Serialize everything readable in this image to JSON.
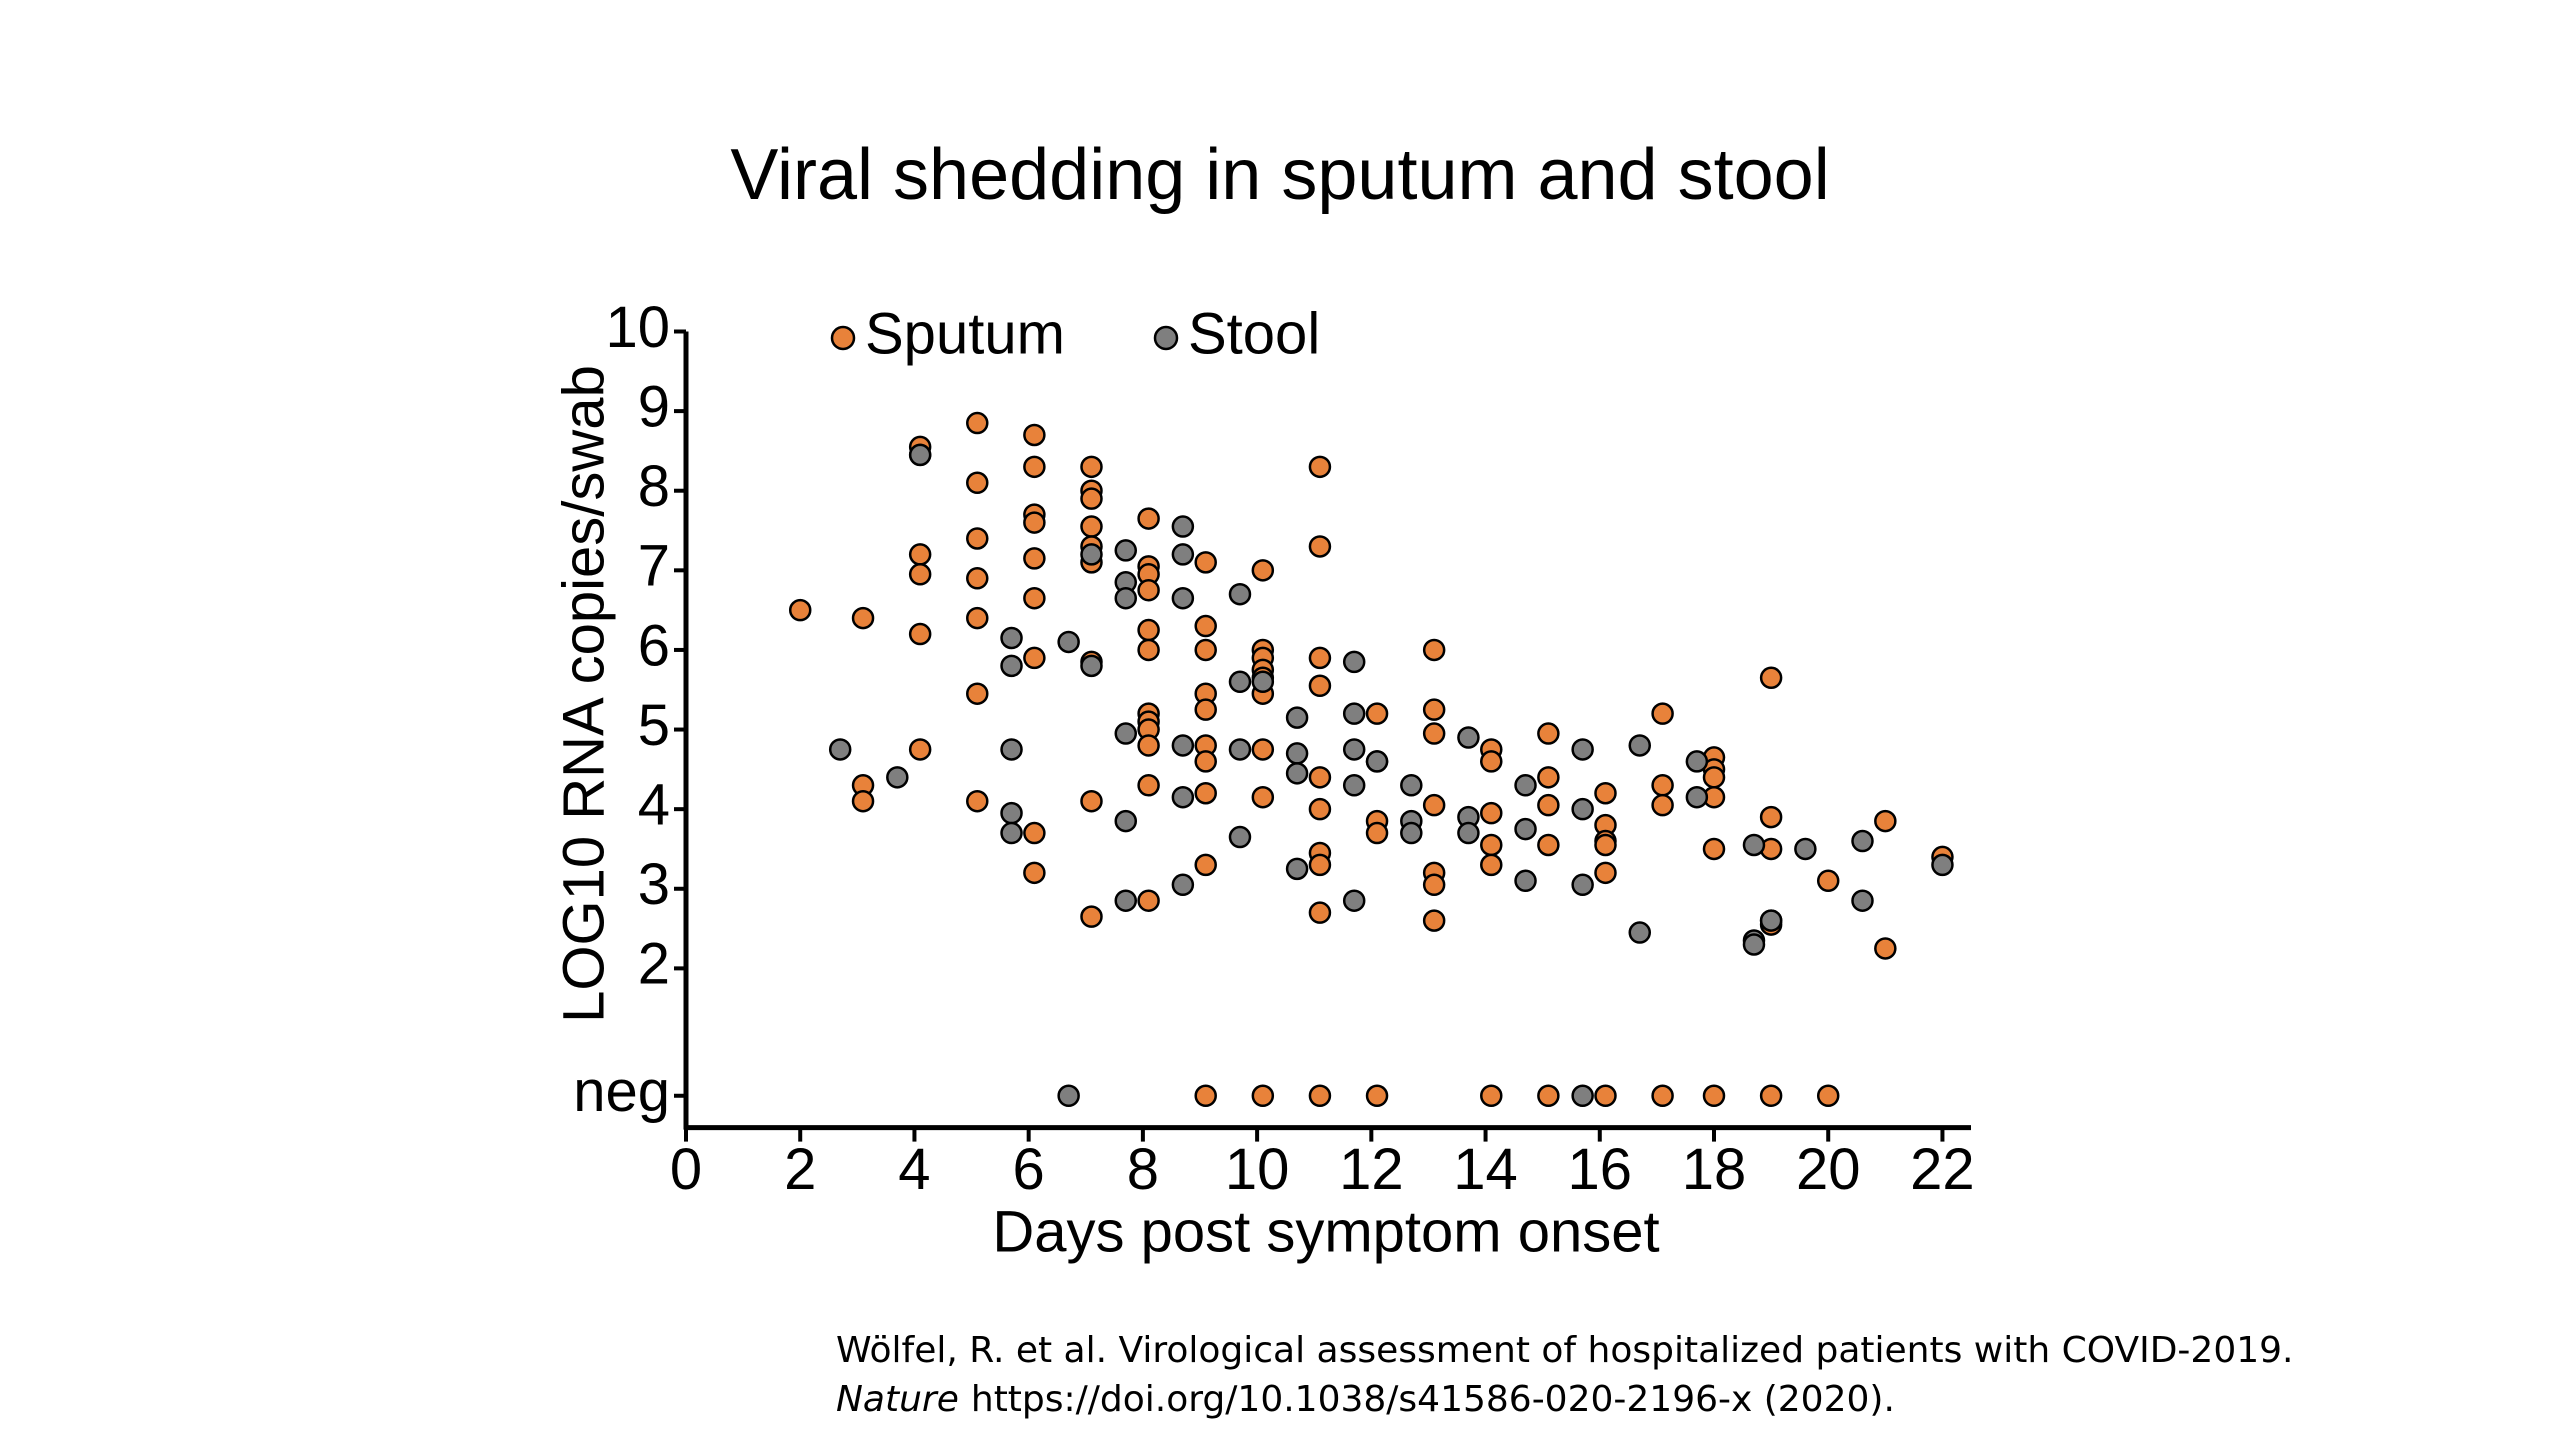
{
  "chart_data": {
    "type": "scatter",
    "title": "Viral shedding in sputum and stool",
    "xlabel": "Days post symptom onset",
    "ylabel": "LOG10 RNA copies/swab",
    "xlim": [
      0,
      22.5
    ],
    "ylim": [
      0,
      10
    ],
    "xticks": [
      0,
      2,
      4,
      6,
      8,
      10,
      12,
      14,
      16,
      18,
      20,
      22
    ],
    "yticks": [
      {
        "value": 0.4,
        "label": "neg"
      },
      2,
      3,
      4,
      5,
      6,
      7,
      8,
      9,
      10
    ],
    "legend": "top",
    "series": [
      {
        "name": "Sputum",
        "color": "#e8823a",
        "x": [
          2.0,
          3.1,
          3.1,
          3.1,
          4.1,
          4.1,
          4.1,
          4.1,
          4.1,
          4.1,
          5.1,
          5.1,
          5.1,
          5.1,
          5.1,
          5.1,
          5.1,
          6.1,
          6.1,
          6.1,
          6.1,
          6.1,
          6.1,
          6.1,
          6.1,
          6.1,
          7.1,
          7.1,
          7.1,
          7.1,
          7.1,
          7.1,
          7.1,
          7.1,
          7.1,
          8.1,
          8.1,
          8.1,
          8.1,
          8.1,
          8.1,
          8.1,
          8.1,
          8.1,
          8.1,
          8.1,
          8.1,
          9.1,
          9.1,
          9.1,
          9.1,
          9.1,
          9.1,
          9.1,
          9.1,
          9.1,
          10.1,
          10.1,
          10.1,
          10.1,
          10.1,
          10.1,
          10.1,
          10.1,
          11.1,
          11.1,
          11.1,
          11.1,
          11.1,
          11.1,
          11.1,
          11.1,
          11.1,
          12.1,
          12.1,
          12.1,
          12.1,
          13.1,
          13.1,
          13.1,
          13.1,
          13.1,
          13.1,
          13.1,
          14.1,
          14.1,
          14.1,
          14.1,
          14.1,
          15.1,
          15.1,
          15.1,
          15.1,
          16.1,
          16.1,
          16.1,
          16.1,
          16.1,
          17.1,
          17.1,
          17.1,
          18.0,
          18.0,
          18.0,
          18.0,
          18.0,
          19.0,
          19.0,
          19.0,
          19.0,
          19.0,
          20.0,
          21.0,
          21.0,
          22.0,
          9.1,
          10.1,
          11.1,
          12.1,
          14.1,
          15.1,
          16.1,
          17.1,
          18.0,
          19.0,
          20.0
        ],
        "values": [
          6.5,
          6.4,
          4.3,
          4.1,
          8.55,
          8.45,
          7.2,
          6.95,
          6.2,
          4.75,
          8.85,
          8.1,
          7.4,
          6.9,
          6.4,
          5.45,
          4.1,
          8.7,
          8.3,
          7.7,
          7.6,
          7.15,
          6.65,
          5.9,
          3.7,
          3.2,
          8.3,
          8.0,
          7.9,
          7.55,
          7.3,
          7.1,
          5.85,
          4.1,
          2.65,
          7.65,
          7.05,
          6.95,
          6.75,
          6.25,
          6.0,
          5.2,
          5.1,
          5.0,
          4.8,
          4.3,
          2.85,
          7.1,
          6.3,
          6.0,
          5.45,
          5.25,
          4.8,
          4.6,
          4.2,
          3.3,
          7.0,
          6.0,
          5.9,
          5.75,
          5.65,
          5.45,
          4.75,
          4.15,
          8.3,
          7.3,
          5.9,
          5.55,
          4.4,
          4.0,
          3.45,
          3.3,
          2.7,
          5.2,
          4.6,
          3.85,
          3.7,
          6.0,
          5.25,
          4.95,
          4.05,
          3.2,
          3.05,
          2.6,
          4.75,
          4.6,
          3.95,
          3.55,
          3.3,
          4.95,
          4.4,
          4.05,
          3.55,
          4.2,
          3.8,
          3.6,
          3.55,
          3.2,
          5.2,
          4.3,
          4.05,
          4.65,
          4.5,
          4.4,
          4.15,
          3.5,
          5.65,
          3.9,
          3.5,
          2.6,
          2.55,
          3.1,
          3.85,
          2.25,
          3.4,
          0.4,
          0.4,
          0.4,
          0.4,
          0.4,
          0.4,
          0.4,
          0.4,
          0.4,
          0.4,
          0.4
        ]
      },
      {
        "name": "Stool",
        "color": "#7f7f7f",
        "x": [
          2.7,
          3.7,
          4.1,
          5.7,
          5.7,
          5.7,
          5.7,
          5.7,
          6.7,
          7.1,
          7.1,
          7.7,
          7.7,
          7.7,
          7.7,
          7.7,
          7.7,
          8.7,
          8.7,
          8.7,
          8.7,
          8.7,
          8.7,
          9.7,
          9.7,
          9.7,
          9.7,
          10.1,
          10.7,
          10.7,
          10.7,
          10.7,
          11.7,
          11.7,
          11.7,
          11.7,
          11.7,
          12.1,
          12.7,
          12.7,
          12.7,
          13.7,
          13.7,
          13.7,
          14.7,
          14.7,
          14.7,
          15.7,
          15.7,
          15.7,
          16.7,
          16.7,
          17.7,
          17.7,
          18.7,
          18.7,
          18.7,
          19.0,
          19.6,
          20.6,
          20.6,
          22.0,
          6.7,
          15.7
        ],
        "values": [
          4.75,
          4.4,
          8.45,
          6.15,
          5.8,
          4.75,
          3.95,
          3.7,
          6.1,
          5.8,
          7.2,
          7.25,
          6.85,
          6.65,
          4.95,
          3.85,
          2.85,
          7.55,
          7.2,
          6.65,
          4.8,
          4.15,
          3.05,
          6.7,
          5.6,
          4.75,
          3.65,
          5.6,
          5.15,
          4.7,
          4.45,
          3.25,
          5.85,
          5.2,
          4.75,
          4.3,
          2.85,
          4.6,
          4.3,
          3.85,
          3.7,
          4.9,
          3.9,
          3.7,
          4.3,
          3.75,
          3.1,
          4.75,
          4.0,
          3.05,
          4.8,
          2.45,
          4.6,
          4.15,
          3.55,
          2.35,
          2.3,
          2.6,
          3.5,
          3.6,
          2.85,
          3.3,
          0.4,
          0.4
        ]
      }
    ]
  },
  "citation": {
    "line1": "Wölfel, R. et al. Virological assessment of hospitalized patients with COVID-2019.",
    "line2_italic": "Nature",
    "line2_rest": "https://doi.org/10.1038/s41586-020-2196-x (2020)."
  }
}
